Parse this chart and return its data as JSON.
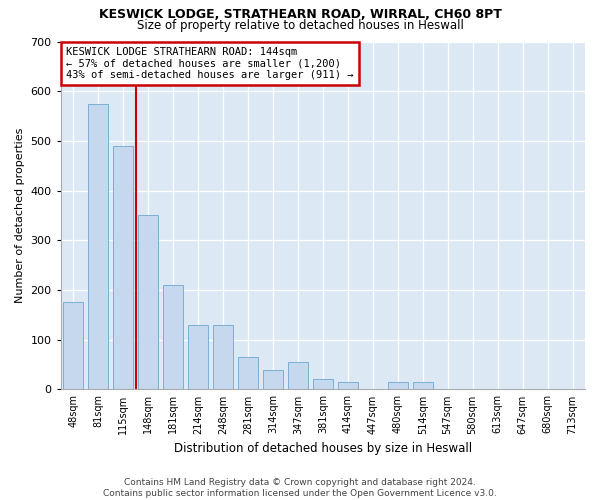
{
  "title1": "KESWICK LODGE, STRATHEARN ROAD, WIRRAL, CH60 8PT",
  "title2": "Size of property relative to detached houses in Heswall",
  "xlabel": "Distribution of detached houses by size in Heswall",
  "ylabel": "Number of detached properties",
  "categories": [
    "48sqm",
    "81sqm",
    "115sqm",
    "148sqm",
    "181sqm",
    "214sqm",
    "248sqm",
    "281sqm",
    "314sqm",
    "347sqm",
    "381sqm",
    "414sqm",
    "447sqm",
    "480sqm",
    "514sqm",
    "547sqm",
    "580sqm",
    "613sqm",
    "647sqm",
    "680sqm",
    "713sqm"
  ],
  "values": [
    175,
    575,
    490,
    350,
    210,
    130,
    130,
    65,
    40,
    55,
    20,
    15,
    0,
    15,
    15,
    0,
    0,
    0,
    0,
    0,
    0
  ],
  "bar_color": "#c5d8ed",
  "bar_edge_color": "#7bafd4",
  "vline_color": "#cc0000",
  "annotation_text": "KESWICK LODGE STRATHEARN ROAD: 144sqm\n← 57% of detached houses are smaller (1,200)\n43% of semi-detached houses are larger (911) →",
  "annotation_box_color": "#ffffff",
  "annotation_box_edge": "#cc0000",
  "ylim": [
    0,
    700
  ],
  "yticks": [
    0,
    100,
    200,
    300,
    400,
    500,
    600,
    700
  ],
  "background_color": "#dce9f5",
  "footer": "Contains HM Land Registry data © Crown copyright and database right 2024.\nContains public sector information licensed under the Open Government Licence v3.0."
}
